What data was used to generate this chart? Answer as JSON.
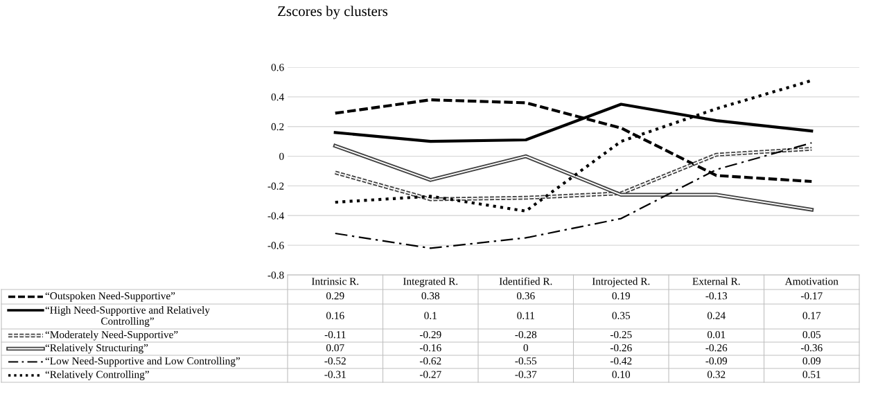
{
  "chart_data": {
    "type": "line",
    "title": "Zscores by clusters",
    "categories": [
      "Intrinsic R.",
      "Integrated R.",
      "Identified R.",
      "Introjected R.",
      "External R.",
      "Amotivation"
    ],
    "ylim": [
      -0.8,
      0.6
    ],
    "yticks": [
      -0.8,
      -0.6,
      -0.4,
      -0.2,
      0,
      0.2,
      0.4,
      0.6
    ],
    "grid": "y",
    "legend": "bottom",
    "series": [
      {
        "name": "“Outspoken Need-Supportive”",
        "color": "#000000",
        "line_style": "dashed",
        "values": [
          0.29,
          0.38,
          0.36,
          0.19,
          -0.13,
          -0.17
        ],
        "value_labels": [
          "0.29",
          "0.38",
          "0.36",
          "0.19",
          "-0.13",
          "-0.17"
        ]
      },
      {
        "name": "“High Need-Supportive and Relatively\nControlling”",
        "color": "#000000",
        "line_style": "solid",
        "values": [
          0.16,
          0.1,
          0.11,
          0.35,
          0.24,
          0.17
        ],
        "value_labels": [
          "0.16",
          "0.1",
          "0.11",
          "0.35",
          "0.24",
          "0.17"
        ]
      },
      {
        "name": "“Moderately Need-Supportive”",
        "color": "#404040",
        "line_style": "dashed",
        "values": [
          -0.11,
          -0.29,
          -0.28,
          -0.25,
          0.01,
          0.05
        ],
        "value_labels": [
          "-0.11",
          "-0.29",
          "-0.28",
          "-0.25",
          "0.01",
          "0.05"
        ]
      },
      {
        "name": "“Relatively Structuring”",
        "color": "#404040",
        "line_style": "solid",
        "values": [
          0.07,
          -0.16,
          0,
          -0.26,
          -0.26,
          -0.36
        ],
        "value_labels": [
          "0.07",
          "-0.16",
          "0",
          "-0.26",
          "-0.26",
          "-0.36"
        ]
      },
      {
        "name": "“Low Need-Supportive and Low Controlling”",
        "color": "#000000",
        "line_style": "dashdot",
        "values": [
          -0.52,
          -0.62,
          -0.55,
          -0.42,
          -0.09,
          0.09
        ],
        "value_labels": [
          "-0.52",
          "-0.62",
          "-0.55",
          "-0.42",
          "-0.09",
          "0.09"
        ]
      },
      {
        "name": "“Relatively Controlling”",
        "color": "#000000",
        "line_style": "dotted",
        "values": [
          -0.31,
          -0.27,
          -0.37,
          0.1,
          0.32,
          0.51
        ],
        "value_labels": [
          "-0.31",
          "-0.27",
          "-0.37",
          "0.10",
          "0.32",
          "0.51"
        ]
      }
    ]
  }
}
